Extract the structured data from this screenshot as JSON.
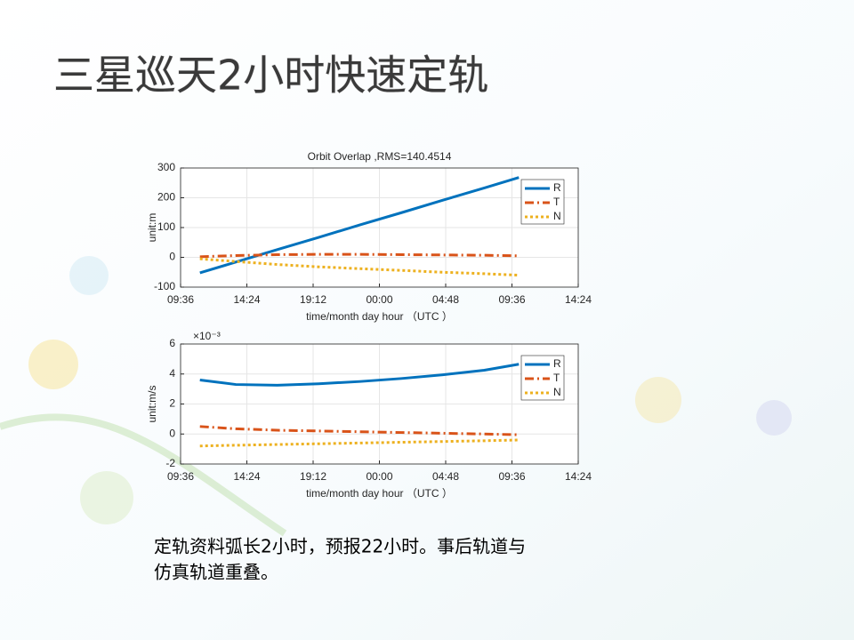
{
  "slide_title": "三星巡天2小时快速定轨",
  "caption": [
    "定轨资料弧长2小时，预报22小时。事后轨道与",
    "仿真轨道重叠。"
  ],
  "chart_data": [
    {
      "type": "line",
      "title": "Orbit Overlap ,RMS=140.4514",
      "xlabel": "time/month day hour （UTC ）",
      "ylabel": "unit:m",
      "x": [
        1.4,
        4,
        7,
        10,
        13,
        16,
        19,
        22,
        24.5
      ],
      "xlim": [
        0,
        28.8
      ],
      "xticks": [
        {
          "value": 0,
          "label": "09:36"
        },
        {
          "value": 4.8,
          "label": "14:24"
        },
        {
          "value": 9.6,
          "label": "19:12"
        },
        {
          "value": 14.4,
          "label": "00:00"
        },
        {
          "value": 19.2,
          "label": "04:48"
        },
        {
          "value": 24,
          "label": "09:36"
        },
        {
          "value": 28.8,
          "label": "14:24"
        }
      ],
      "ylim": [
        -100,
        300
      ],
      "yticks": [
        -100,
        0,
        100,
        200,
        300
      ],
      "grid": true,
      "legend": "upper right",
      "series": [
        {
          "name": "R",
          "color": "#0072bd",
          "style": "solid",
          "values": [
            -52,
            -16,
            26,
            67,
            109,
            150,
            192,
            233,
            268
          ]
        },
        {
          "name": "T",
          "color": "#d95319",
          "style": "dashdot",
          "values": [
            2,
            6,
            9,
            10,
            10,
            9,
            8,
            7,
            5
          ]
        },
        {
          "name": "N",
          "color": "#edb120",
          "style": "dotted",
          "values": [
            -5,
            -14,
            -24,
            -32,
            -38,
            -44,
            -50,
            -55,
            -60
          ]
        }
      ]
    },
    {
      "type": "line",
      "xlabel": "time/month day hour （UTC ）",
      "ylabel": "unit:m/s",
      "exponent_label": "×10⁻³",
      "x": [
        1.4,
        4,
        7,
        10,
        13,
        16,
        19,
        22,
        24.5
      ],
      "xlim": [
        0,
        28.8
      ],
      "xticks": [
        {
          "value": 0,
          "label": "09:36"
        },
        {
          "value": 4.8,
          "label": "14:24"
        },
        {
          "value": 9.6,
          "label": "19:12"
        },
        {
          "value": 14.4,
          "label": "00:00"
        },
        {
          "value": 19.2,
          "label": "04:48"
        },
        {
          "value": 24,
          "label": "09:36"
        },
        {
          "value": 28.8,
          "label": "14:24"
        }
      ],
      "ylim": [
        -2,
        6
      ],
      "yticks": [
        -2,
        0,
        2,
        4,
        6
      ],
      "grid": true,
      "legend": "upper right",
      "series": [
        {
          "name": "R",
          "color": "#0072bd",
          "style": "solid",
          "values": [
            3.6,
            3.3,
            3.25,
            3.35,
            3.5,
            3.7,
            3.95,
            4.25,
            4.65
          ]
        },
        {
          "name": "T",
          "color": "#d95319",
          "style": "dashdot",
          "values": [
            0.5,
            0.35,
            0.25,
            0.2,
            0.15,
            0.1,
            0.05,
            0,
            -0.05
          ]
        },
        {
          "name": "N",
          "color": "#edb120",
          "style": "dotted",
          "values": [
            -0.8,
            -0.75,
            -0.7,
            -0.65,
            -0.6,
            -0.55,
            -0.5,
            -0.45,
            -0.4
          ]
        }
      ]
    }
  ]
}
